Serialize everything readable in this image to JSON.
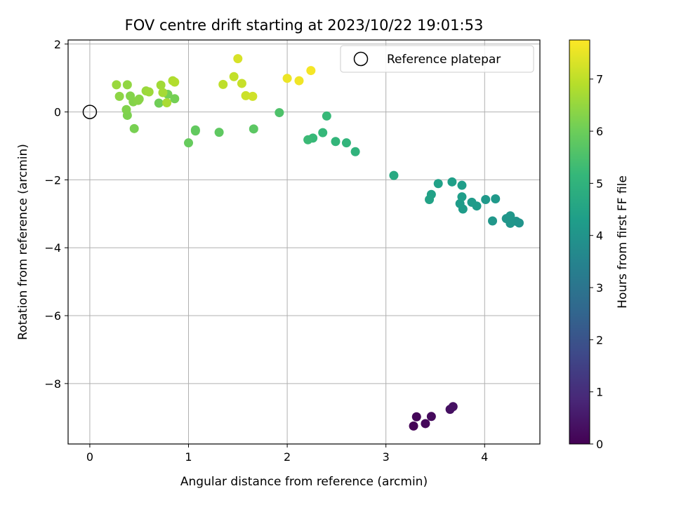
{
  "chart_data": {
    "type": "scatter",
    "title": "FOV centre drift starting at 2023/10/22 19:01:53",
    "xlabel": "Angular distance from reference (arcmin)",
    "ylabel": "Rotation from reference (arcmin)",
    "xlim": [
      -0.22,
      4.56
    ],
    "ylim": [
      -9.78,
      2.12
    ],
    "xticks": [
      0,
      1,
      2,
      3,
      4
    ],
    "yticks": [
      -8,
      -6,
      -4,
      -2,
      0,
      2
    ],
    "grid": true,
    "legend": {
      "placement": "top-right",
      "entries": [
        "Reference platepar"
      ]
    },
    "reference_point": {
      "name": "Reference platepar",
      "x": 0,
      "y": 0
    },
    "colorbar": {
      "label": "Hours from first FF file",
      "range": [
        0,
        7.75
      ],
      "ticks": [
        0,
        1,
        2,
        3,
        4,
        5,
        6,
        7
      ],
      "colormap": "viridis"
    },
    "points": [
      {
        "x": 3.28,
        "y": -9.25,
        "c": 0.05
      },
      {
        "x": 3.31,
        "y": -8.98,
        "c": 0.1
      },
      {
        "x": 3.4,
        "y": -9.18,
        "c": 0.15
      },
      {
        "x": 3.46,
        "y": -8.97,
        "c": 0.2
      },
      {
        "x": 3.65,
        "y": -8.76,
        "c": 0.3
      },
      {
        "x": 3.68,
        "y": -8.68,
        "c": 0.35
      },
      {
        "x": 4.32,
        "y": -3.22,
        "c": 4.0
      },
      {
        "x": 4.35,
        "y": -3.27,
        "c": 4.0
      },
      {
        "x": 4.26,
        "y": -3.28,
        "c": 4.05
      },
      {
        "x": 4.22,
        "y": -3.14,
        "c": 4.05
      },
      {
        "x": 4.26,
        "y": -3.06,
        "c": 4.1
      },
      {
        "x": 4.08,
        "y": -3.21,
        "c": 4.1
      },
      {
        "x": 4.01,
        "y": -2.58,
        "c": 4.15
      },
      {
        "x": 4.11,
        "y": -2.56,
        "c": 4.15
      },
      {
        "x": 3.92,
        "y": -2.77,
        "c": 4.2
      },
      {
        "x": 3.87,
        "y": -2.66,
        "c": 4.2
      },
      {
        "x": 3.78,
        "y": -2.86,
        "c": 4.25
      },
      {
        "x": 3.75,
        "y": -2.7,
        "c": 4.25
      },
      {
        "x": 3.77,
        "y": -2.5,
        "c": 4.3
      },
      {
        "x": 3.77,
        "y": -2.16,
        "c": 4.3
      },
      {
        "x": 3.67,
        "y": -2.06,
        "c": 4.35
      },
      {
        "x": 3.53,
        "y": -2.11,
        "c": 4.4
      },
      {
        "x": 3.46,
        "y": -2.43,
        "c": 4.4
      },
      {
        "x": 3.44,
        "y": -2.58,
        "c": 4.45
      },
      {
        "x": 3.08,
        "y": -1.87,
        "c": 4.7
      },
      {
        "x": 2.69,
        "y": -1.17,
        "c": 5.0
      },
      {
        "x": 2.6,
        "y": -0.91,
        "c": 5.05
      },
      {
        "x": 2.49,
        "y": -0.87,
        "c": 5.1
      },
      {
        "x": 2.36,
        "y": -0.61,
        "c": 5.15
      },
      {
        "x": 2.4,
        "y": -0.12,
        "c": 5.2
      },
      {
        "x": 2.26,
        "y": -0.77,
        "c": 5.2
      },
      {
        "x": 2.21,
        "y": -0.82,
        "c": 5.25
      },
      {
        "x": 1.92,
        "y": -0.02,
        "c": 5.55
      },
      {
        "x": 1.66,
        "y": -0.5,
        "c": 5.75
      },
      {
        "x": 1.31,
        "y": -0.6,
        "c": 5.8
      },
      {
        "x": 1.07,
        "y": -0.53,
        "c": 5.85
      },
      {
        "x": 1.07,
        "y": -0.56,
        "c": 5.85
      },
      {
        "x": 1.0,
        "y": -0.91,
        "c": 5.9
      },
      {
        "x": 0.7,
        "y": 0.26,
        "c": 6.05
      },
      {
        "x": 0.86,
        "y": 0.39,
        "c": 6.1
      },
      {
        "x": 0.79,
        "y": 0.52,
        "c": 6.1
      },
      {
        "x": 0.45,
        "y": -0.49,
        "c": 6.15
      },
      {
        "x": 0.38,
        "y": -0.1,
        "c": 6.2
      },
      {
        "x": 0.37,
        "y": 0.07,
        "c": 6.25
      },
      {
        "x": 0.41,
        "y": 0.47,
        "c": 6.3
      },
      {
        "x": 0.44,
        "y": 0.3,
        "c": 6.3
      },
      {
        "x": 0.49,
        "y": 0.34,
        "c": 6.35
      },
      {
        "x": 0.5,
        "y": 0.38,
        "c": 6.35
      },
      {
        "x": 0.3,
        "y": 0.46,
        "c": 6.4
      },
      {
        "x": 0.38,
        "y": 0.8,
        "c": 6.45
      },
      {
        "x": 0.27,
        "y": 0.8,
        "c": 6.55
      },
      {
        "x": 0.57,
        "y": 0.62,
        "c": 6.55
      },
      {
        "x": 0.6,
        "y": 0.59,
        "c": 6.6
      },
      {
        "x": 0.72,
        "y": 0.79,
        "c": 6.65
      },
      {
        "x": 0.74,
        "y": 0.57,
        "c": 6.7
      },
      {
        "x": 0.78,
        "y": 0.27,
        "c": 6.75
      },
      {
        "x": 0.84,
        "y": 0.92,
        "c": 6.8
      },
      {
        "x": 0.86,
        "y": 0.88,
        "c": 6.85
      },
      {
        "x": 1.35,
        "y": 0.81,
        "c": 7.0
      },
      {
        "x": 1.46,
        "y": 1.04,
        "c": 7.05
      },
      {
        "x": 1.54,
        "y": 0.84,
        "c": 7.1
      },
      {
        "x": 1.58,
        "y": 0.48,
        "c": 7.15
      },
      {
        "x": 1.65,
        "y": 0.46,
        "c": 7.2
      },
      {
        "x": 1.5,
        "y": 1.57,
        "c": 7.3
      },
      {
        "x": 2.0,
        "y": 0.99,
        "c": 7.55
      },
      {
        "x": 2.12,
        "y": 0.92,
        "c": 7.6
      },
      {
        "x": 2.24,
        "y": 1.22,
        "c": 7.65
      }
    ]
  }
}
